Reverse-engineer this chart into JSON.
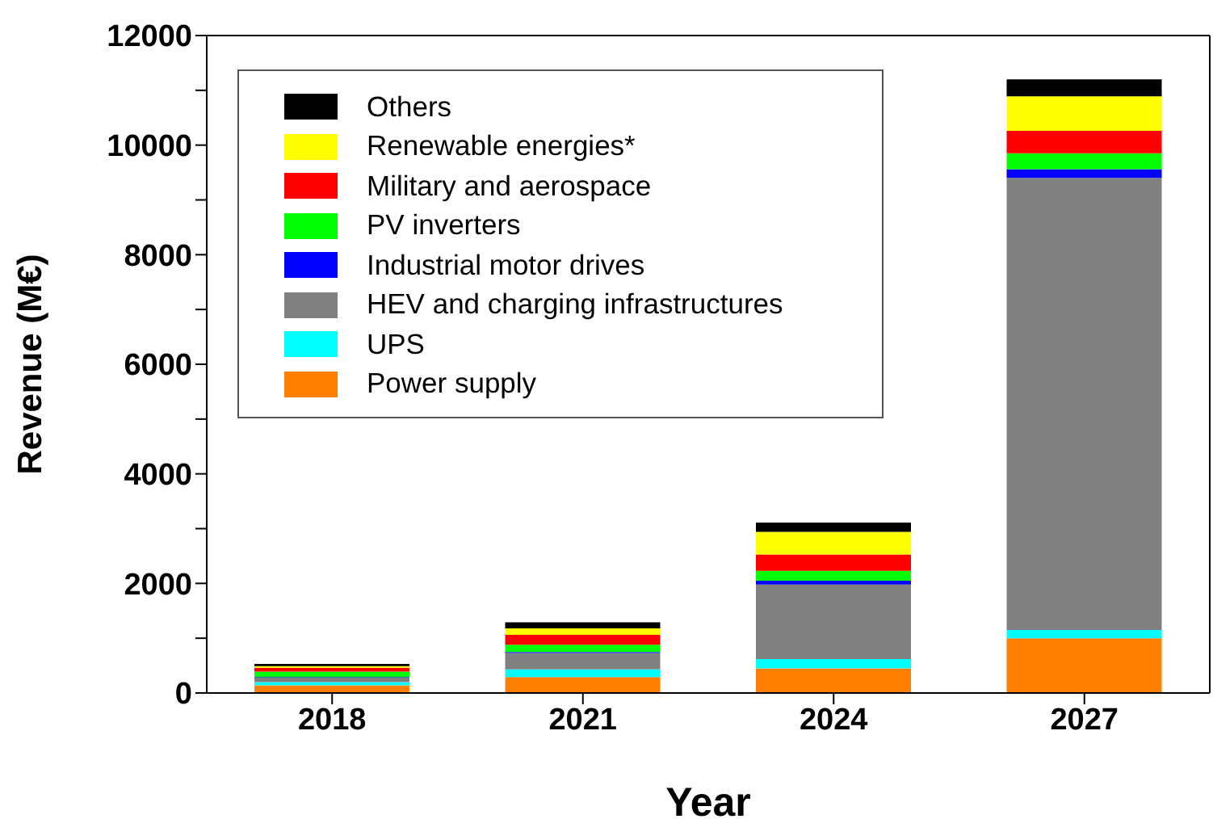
{
  "chart_data": {
    "type": "bar",
    "stacked": true,
    "xlabel": "Year",
    "ylabel": "Revenue (M€)",
    "categories": [
      "2018",
      "2021",
      "2024",
      "2027"
    ],
    "series": [
      {
        "name": "Power supply",
        "color": "#ff8000",
        "values": [
          140,
          290,
          450,
          1000
        ]
      },
      {
        "name": "UPS",
        "color": "#00ffff",
        "values": [
          60,
          140,
          170,
          150
        ]
      },
      {
        "name": "HEV and charging infrastructures",
        "color": "#808080",
        "values": [
          80,
          300,
          1360,
          8250
        ]
      },
      {
        "name": "Industrial motor drives",
        "color": "#0000ff",
        "values": [
          10,
          20,
          70,
          160
        ]
      },
      {
        "name": "PV inverters",
        "color": "#00ff00",
        "values": [
          100,
          130,
          180,
          290
        ]
      },
      {
        "name": "Military and aerospace",
        "color": "#ff0000",
        "values": [
          70,
          180,
          300,
          410
        ]
      },
      {
        "name": "Renewable energies*",
        "color": "#ffff00",
        "values": [
          30,
          120,
          410,
          630
        ]
      },
      {
        "name": "Others",
        "color": "#000000",
        "values": [
          40,
          110,
          170,
          310
        ]
      }
    ],
    "ylim": [
      0,
      12000
    ],
    "yticks": [
      0,
      {
        "value": 1000,
        "label": null
      },
      2000,
      {
        "value": 3000,
        "label": null
      },
      4000,
      {
        "value": 5000,
        "label": null
      },
      6000,
      {
        "value": 7000,
        "label": null
      },
      8000,
      {
        "value": 9000,
        "label": null
      },
      10000,
      {
        "value": 11000,
        "label": null
      },
      12000
    ],
    "legend": "top left",
    "grid": false
  }
}
